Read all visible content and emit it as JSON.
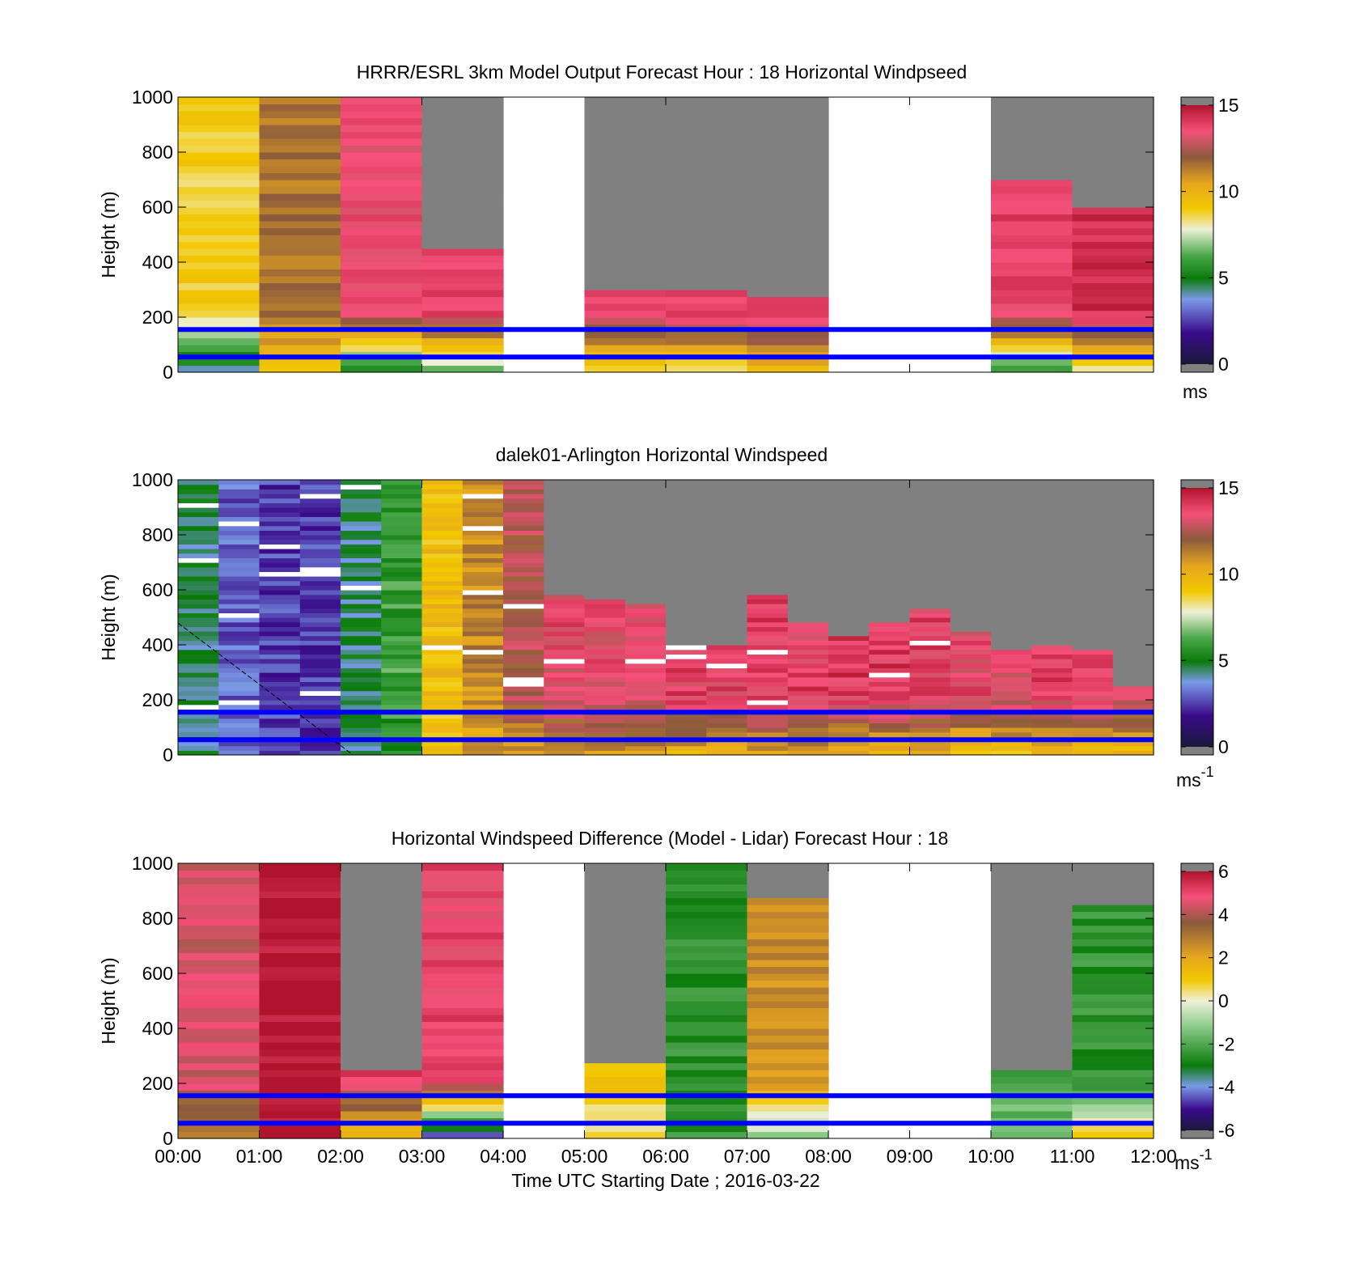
{
  "chart_data": [
    {
      "type": "heatmap",
      "title": "HRRR/ESRL 3km Model Output   Forecast Hour : 18 Horizontal Windpseed",
      "ylabel": "Height (m)",
      "ylim": [
        0,
        1000
      ],
      "yticks": [
        "0",
        "200",
        "400",
        "600",
        "800",
        "1000"
      ],
      "xlim_hours": [
        0,
        12
      ],
      "colorbar": {
        "range": [
          0,
          15
        ],
        "ticks": [
          "0",
          "5",
          "10",
          "15"
        ],
        "unit_label": "ms",
        "unit_sup": ""
      },
      "reference_lines_m": [
        55,
        155
      ],
      "column_hours": [
        0,
        1,
        2,
        3,
        4,
        5,
        6,
        7,
        8,
        9,
        10,
        11
      ],
      "top_m": [
        1000,
        1000,
        1000,
        450,
        null,
        300,
        300,
        255,
        null,
        null,
        700,
        600
      ],
      "surface_speed": [
        4.5,
        9.5,
        5.0,
        6.5,
        null,
        8.5,
        8.5,
        9.5,
        null,
        null,
        6.0,
        8.0
      ],
      "upper_speed": [
        8.8,
        11.5,
        13.5,
        13.8,
        null,
        13.5,
        13.8,
        14.2,
        null,
        null,
        13.8,
        14.3
      ]
    },
    {
      "type": "heatmap",
      "title": "dalek01-Arlington  Horizontal Windspeed",
      "ylabel": "Height (m)",
      "ylim": [
        0,
        1000
      ],
      "yticks": [
        "0",
        "200",
        "400",
        "600",
        "800",
        "1000"
      ],
      "xlim_hours": [
        0,
        12
      ],
      "colorbar": {
        "range": [
          0,
          15
        ],
        "ticks": [
          "0",
          "5",
          "10",
          "15"
        ],
        "unit_label": "ms",
        "unit_sup": "-1"
      },
      "reference_lines_m": [
        55,
        155
      ],
      "column_hours": [
        0,
        0.5,
        1,
        1.5,
        2,
        2.5,
        3,
        3.5,
        4,
        4.5,
        5,
        5.5,
        6,
        6.5,
        7,
        7.5,
        8,
        8.5,
        9,
        9.5,
        10,
        10.5,
        11,
        11.5
      ],
      "top_m": [
        1000,
        1000,
        1000,
        1000,
        1000,
        1000,
        1000,
        1000,
        1000,
        570,
        560,
        540,
        400,
        390,
        580,
        470,
        420,
        480,
        520,
        450,
        380,
        400,
        380,
        250
      ],
      "surface_speed": [
        4.5,
        3.0,
        2.5,
        2.0,
        4.5,
        5.5,
        9.0,
        10.5,
        11.0,
        10.5,
        10.5,
        10.5,
        10.0,
        10.0,
        10.5,
        10.5,
        10.0,
        10.0,
        10.0,
        9.5,
        9.5,
        9.5,
        9.5,
        9.5
      ],
      "upper_speed": [
        4.5,
        3.0,
        2.5,
        2.5,
        4.5,
        6.0,
        9.5,
        11.0,
        12.5,
        13.5,
        13.5,
        13.5,
        13.8,
        13.8,
        13.8,
        13.8,
        14.0,
        14.0,
        13.8,
        13.5,
        13.5,
        13.8,
        13.8,
        13.5
      ]
    },
    {
      "type": "heatmap",
      "title": "Horizontal Windspeed Difference (Model - Lidar) Forecast Hour : 18",
      "ylabel": "Height (m)",
      "xlabel": "Time UTC  Starting Date ; 2016-03-22",
      "ylim": [
        0,
        1000
      ],
      "yticks": [
        "0",
        "200",
        "400",
        "600",
        "800",
        "1000"
      ],
      "xticks": [
        "00:00",
        "01:00",
        "02:00",
        "03:00",
        "04:00",
        "05:00",
        "06:00",
        "07:00",
        "08:00",
        "09:00",
        "10:00",
        "11:00",
        "12:00"
      ],
      "xlim_hours": [
        0,
        12
      ],
      "colorbar": {
        "range": [
          -6,
          6
        ],
        "ticks": [
          "-6",
          "-4",
          "-2",
          "0",
          "2",
          "4",
          "6"
        ],
        "unit_label": "ms",
        "unit_sup": "-1"
      },
      "reference_lines_m": [
        55,
        155
      ],
      "column_hours": [
        0,
        1,
        2,
        3,
        4,
        5,
        6,
        7,
        8,
        9,
        10,
        11
      ],
      "top_m": [
        1000,
        1000,
        230,
        1000,
        null,
        270,
        1000,
        870,
        null,
        null,
        240,
        840
      ],
      "surface_diff": [
        2.5,
        6.0,
        1.5,
        -4.5,
        null,
        0.5,
        -2.5,
        -1.0,
        null,
        null,
        -1.5,
        0.5
      ],
      "upper_diff": [
        4.5,
        6.0,
        5.0,
        5.0,
        null,
        1.0,
        -2.5,
        2.5,
        null,
        null,
        -2.0,
        -2.5
      ]
    }
  ]
}
